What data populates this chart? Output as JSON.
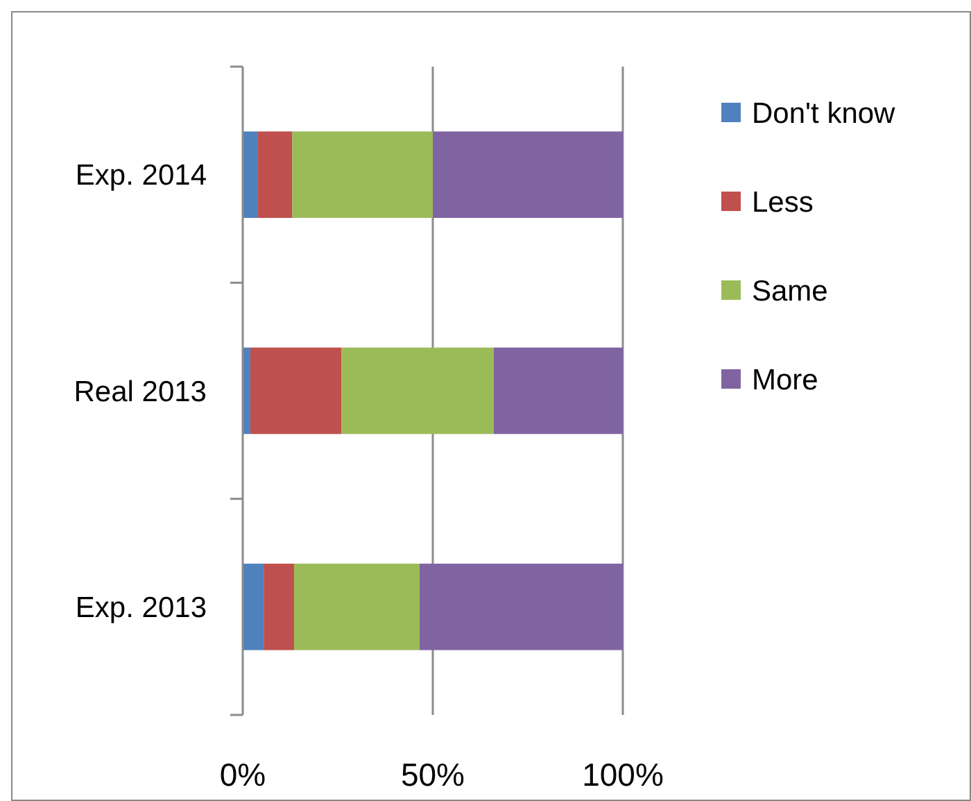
{
  "chart_data": {
    "type": "bar",
    "orientation": "horizontal",
    "stacked": true,
    "categories": [
      "Exp. 2014",
      "Real 2013",
      "Exp. 2013"
    ],
    "series": [
      {
        "name": "Don't know",
        "color": "#4f81bd",
        "values": [
          4,
          2,
          5.5
        ]
      },
      {
        "name": "Less",
        "color": "#c0504d",
        "values": [
          9,
          24,
          8
        ]
      },
      {
        "name": "Same",
        "color": "#9bbb59",
        "values": [
          37,
          40,
          33
        ]
      },
      {
        "name": "More",
        "color": "#8064a2",
        "values": [
          50,
          34,
          53.5
        ]
      }
    ],
    "xlim": [
      0,
      100
    ],
    "xticks": [
      {
        "value": 0,
        "label": "0%"
      },
      {
        "value": 50,
        "label": "50%"
      },
      {
        "value": 100,
        "label": "100%"
      }
    ],
    "grid": "x",
    "legend": "right"
  }
}
